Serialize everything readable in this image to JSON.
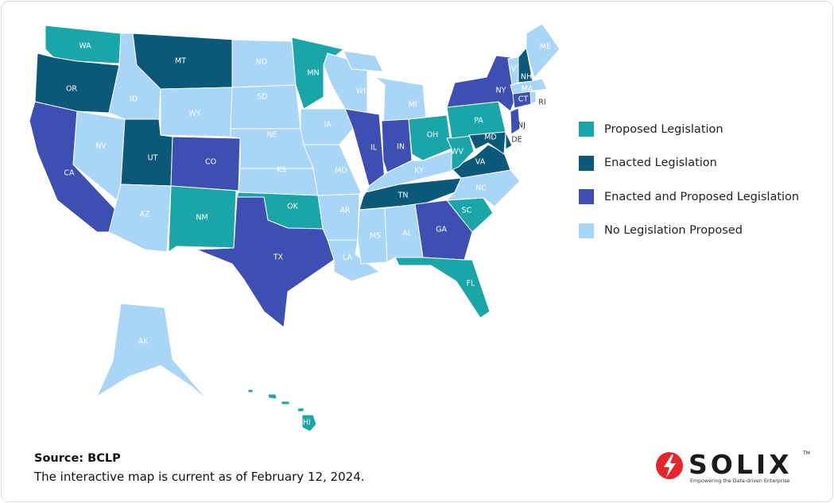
{
  "legend": [
    {
      "label": "Proposed Legislation",
      "color": "#1aa6a8"
    },
    {
      "label": "Enacted Legislation",
      "color": "#0b5878"
    },
    {
      "label": "Enacted and Proposed Legislation",
      "color": "#3e4fb4"
    },
    {
      "label": "No Legislation Proposed",
      "color": "#a9d5f7"
    }
  ],
  "states": [
    {
      "label": "WA",
      "category": "Proposed Legislation"
    },
    {
      "label": "OR",
      "category": "Enacted Legislation"
    },
    {
      "label": "CA",
      "category": "Enacted and Proposed Legislation"
    },
    {
      "label": "NV",
      "category": "No Legislation Proposed"
    },
    {
      "label": "ID",
      "category": "No Legislation Proposed"
    },
    {
      "label": "MT",
      "category": "Enacted Legislation"
    },
    {
      "label": "WY",
      "category": "No Legislation Proposed"
    },
    {
      "label": "UT",
      "category": "Enacted Legislation"
    },
    {
      "label": "AZ",
      "category": "No Legislation Proposed"
    },
    {
      "label": "CO",
      "category": "Enacted and Proposed Legislation"
    },
    {
      "label": "NM",
      "category": "Proposed Legislation"
    },
    {
      "label": "ND",
      "category": "No Legislation Proposed"
    },
    {
      "label": "SD",
      "category": "No Legislation Proposed"
    },
    {
      "label": "NE",
      "category": "No Legislation Proposed"
    },
    {
      "label": "KS",
      "category": "No Legislation Proposed"
    },
    {
      "label": "OK",
      "category": "Proposed Legislation"
    },
    {
      "label": "TX",
      "category": "Enacted and Proposed Legislation"
    },
    {
      "label": "MN",
      "category": "Proposed Legislation"
    },
    {
      "label": "IA",
      "category": "No Legislation Proposed"
    },
    {
      "label": "MO",
      "category": "No Legislation Proposed"
    },
    {
      "label": "AR",
      "category": "No Legislation Proposed"
    },
    {
      "label": "LA",
      "category": "No Legislation Proposed"
    },
    {
      "label": "WI",
      "category": "No Legislation Proposed"
    },
    {
      "label": "IL",
      "category": "Enacted and Proposed Legislation"
    },
    {
      "label": "MI",
      "category": "No Legislation Proposed"
    },
    {
      "label": "IN",
      "category": "Enacted and Proposed Legislation"
    },
    {
      "label": "OH",
      "category": "Proposed Legislation"
    },
    {
      "label": "KY",
      "category": "No Legislation Proposed"
    },
    {
      "label": "TN",
      "category": "Enacted Legislation"
    },
    {
      "label": "MS",
      "category": "No Legislation Proposed"
    },
    {
      "label": "AL",
      "category": "No Legislation Proposed"
    },
    {
      "label": "GA",
      "category": "Enacted and Proposed Legislation"
    },
    {
      "label": "FL",
      "category": "Proposed Legislation"
    },
    {
      "label": "SC",
      "category": "Proposed Legislation"
    },
    {
      "label": "NC",
      "category": "No Legislation Proposed"
    },
    {
      "label": "VA",
      "category": "Enacted Legislation"
    },
    {
      "label": "WV",
      "category": "Proposed Legislation"
    },
    {
      "label": "PA",
      "category": "Proposed Legislation"
    },
    {
      "label": "NY",
      "category": "Enacted and Proposed Legislation"
    },
    {
      "label": "MD",
      "category": "Enacted Legislation"
    },
    {
      "label": "DE",
      "category": "Enacted Legislation"
    },
    {
      "label": "NJ",
      "category": "Enacted and Proposed Legislation"
    },
    {
      "label": "CT",
      "category": "Enacted and Proposed Legislation"
    },
    {
      "label": "RI",
      "category": "No Legislation Proposed"
    },
    {
      "label": "MA",
      "category": "No Legislation Proposed"
    },
    {
      "label": "VT",
      "category": "No Legislation Proposed"
    },
    {
      "label": "NH",
      "category": "Enacted Legislation"
    },
    {
      "label": "ME",
      "category": "No Legislation Proposed"
    },
    {
      "label": "AK",
      "category": "No Legislation Proposed"
    },
    {
      "label": "HI",
      "category": "Proposed Legislation"
    }
  ],
  "source": "Source: BCLP",
  "note": "The interactive map is current as of February 12, 2024.",
  "logo": {
    "name": "SOLIX",
    "mark": "TM",
    "tagline": "Empowering the Data-driven Enterprise"
  }
}
